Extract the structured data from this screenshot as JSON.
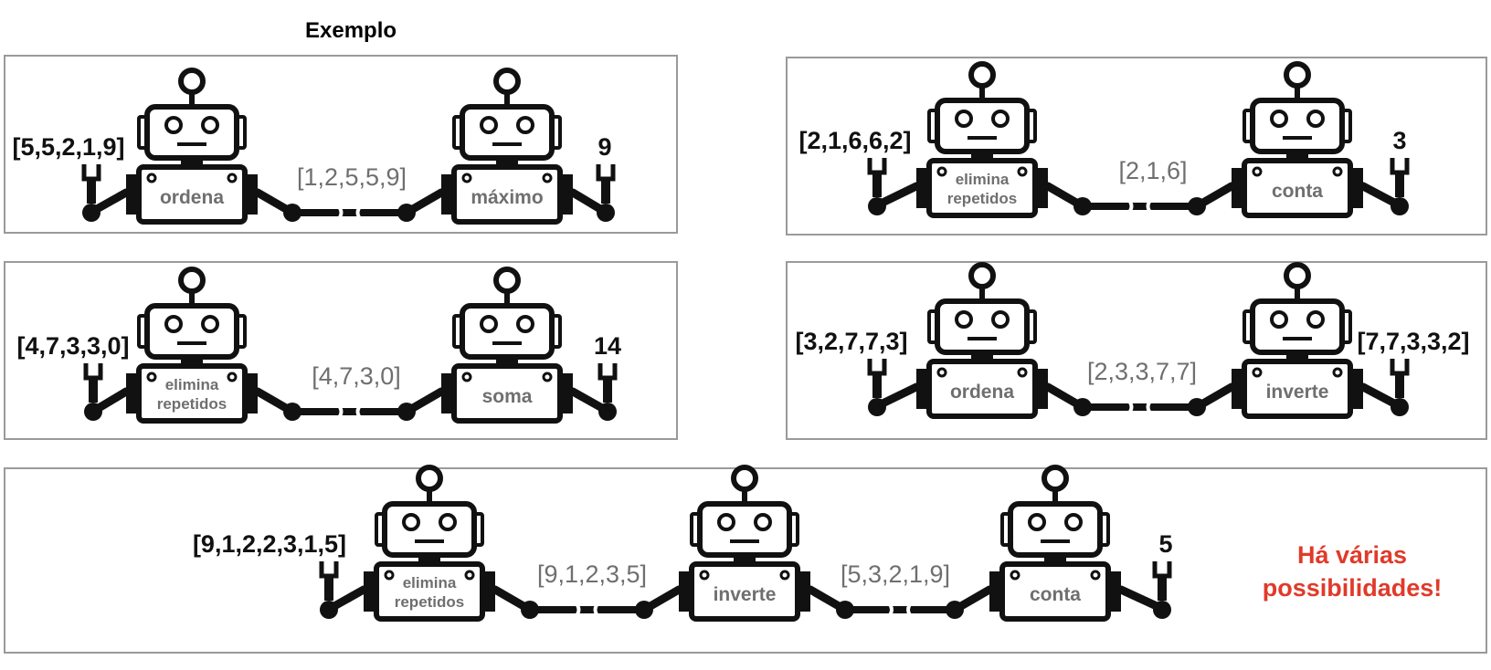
{
  "header": {
    "title": "Exemplo"
  },
  "colors": {
    "ink": "#111111",
    "intermediate": "#6f6f6f",
    "note": "#e03a2a",
    "panel_border": "#9a9a9a"
  },
  "panels": [
    {
      "input": "[5,5,2,1,9]",
      "robots": [
        {
          "label": [
            "ordena"
          ],
          "icon": "robot-icon"
        },
        {
          "label": [
            "máximo"
          ],
          "icon": "robot-icon"
        }
      ],
      "intermediates": [
        "[1,2,5,5,9]"
      ],
      "output": "9"
    },
    {
      "input": "[2,1,6,6,2]",
      "robots": [
        {
          "label": [
            "elimina",
            "repetidos"
          ],
          "icon": "robot-icon"
        },
        {
          "label": [
            "conta"
          ],
          "icon": "robot-icon"
        }
      ],
      "intermediates": [
        "[2,1,6]"
      ],
      "output": "3"
    },
    {
      "input": "[4,7,3,3,0]",
      "robots": [
        {
          "label": [
            "elimina",
            "repetidos"
          ],
          "icon": "robot-icon"
        },
        {
          "label": [
            "soma"
          ],
          "icon": "robot-icon"
        }
      ],
      "intermediates": [
        "[4,7,3,0]"
      ],
      "output": "14"
    },
    {
      "input": "[3,2,7,7,3]",
      "robots": [
        {
          "label": [
            "ordena"
          ],
          "icon": "robot-icon"
        },
        {
          "label": [
            "inverte"
          ],
          "icon": "robot-icon"
        }
      ],
      "intermediates": [
        "[2,3,3,7,7]"
      ],
      "output": "[7,7,3,3,2]"
    },
    {
      "input": "[9,1,2,2,3,1,5]",
      "robots": [
        {
          "label": [
            "elimina",
            "repetidos"
          ],
          "icon": "robot-icon"
        },
        {
          "label": [
            "inverte"
          ],
          "icon": "robot-icon"
        },
        {
          "label": [
            "conta"
          ],
          "icon": "robot-icon"
        }
      ],
      "intermediates": [
        "[9,1,2,3,5]",
        "[5,3,2,1,9]"
      ],
      "output": "5"
    }
  ],
  "note": {
    "line1": "Há várias",
    "line2": "possibilidades!"
  }
}
